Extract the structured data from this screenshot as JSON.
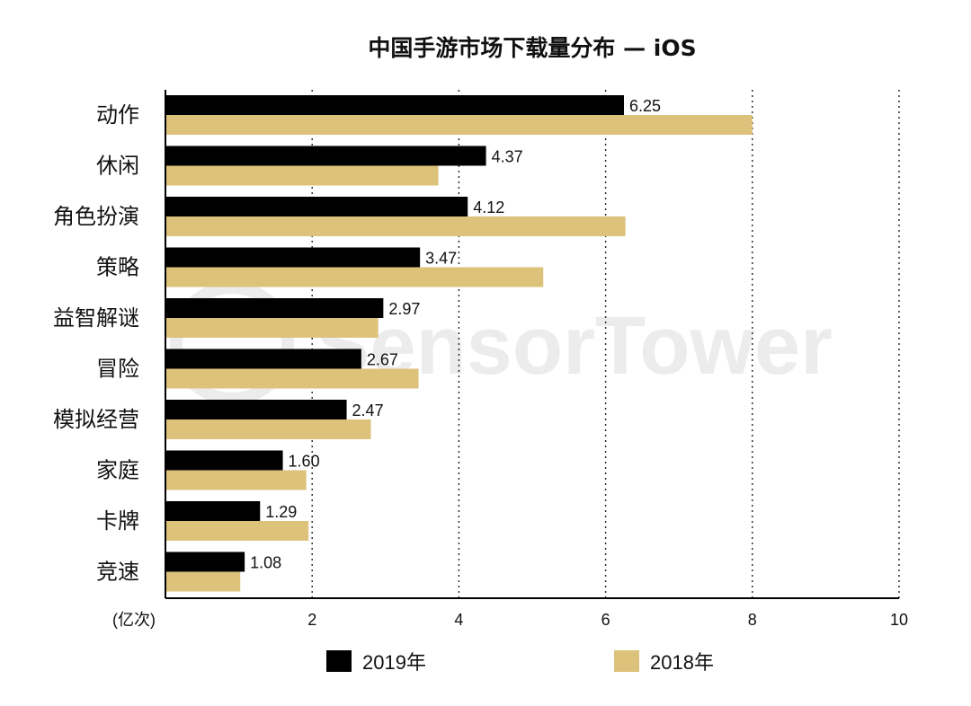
{
  "chart_data": {
    "type": "bar",
    "orientation": "horizontal",
    "title": "中国手游市场下载量分布 — iOS",
    "xlabel": "(亿次)",
    "ylabel": "",
    "xlim": [
      0,
      10
    ],
    "xticks": [
      2,
      4,
      6,
      8,
      10
    ],
    "grid": "vertical-dotted",
    "categories": [
      "动作",
      "休闲",
      "角色扮演",
      "策略",
      "益智解谜",
      "冒险",
      "模拟经营",
      "家庭",
      "卡牌",
      "竞速"
    ],
    "series": [
      {
        "name": "2019年",
        "color": "#000000",
        "values": [
          6.25,
          4.37,
          4.12,
          3.47,
          2.97,
          2.67,
          2.47,
          1.6,
          1.29,
          1.08
        ],
        "labels": [
          "6.25",
          "4.37",
          "4.12",
          "3.47",
          "2.97",
          "2.67",
          "2.47",
          "1.60",
          "1.29",
          "1.08"
        ]
      },
      {
        "name": "2018年",
        "color": "#dcc27a",
        "values": [
          8.0,
          3.72,
          6.27,
          5.15,
          2.9,
          3.45,
          2.8,
          1.92,
          1.95,
          1.02
        ]
      }
    ],
    "legend_position": "bottom"
  },
  "watermark": {
    "text": "SensorTower"
  }
}
